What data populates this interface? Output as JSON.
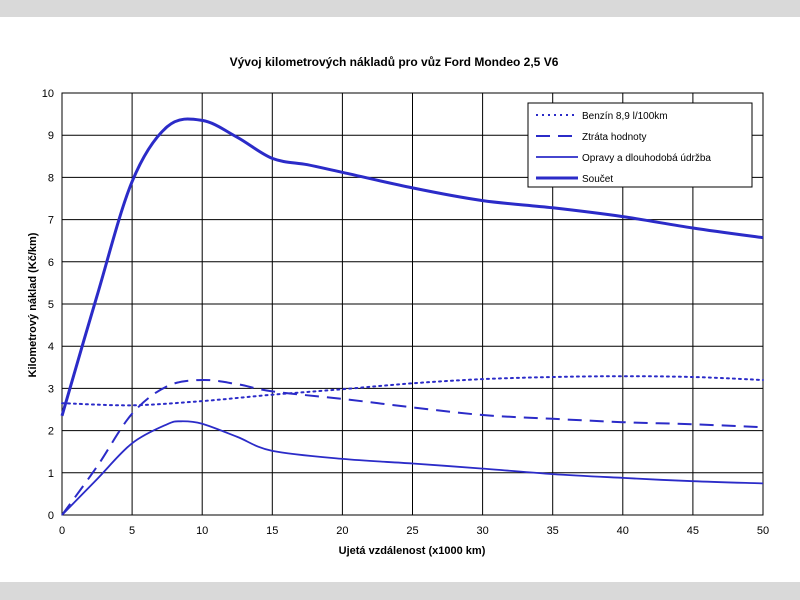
{
  "chart_data": {
    "type": "line",
    "title": "Vývoj kilometrových nákladů pro vůz Ford Mondeo 2,5 V6",
    "xlabel": "Ujetá vzdálenost (x1000 km)",
    "ylabel": "Kilometrový náklad (Kč/km)",
    "xlim": [
      0,
      50
    ],
    "ylim": [
      0,
      10
    ],
    "xticks": [
      0,
      5,
      10,
      15,
      20,
      25,
      30,
      35,
      40,
      45,
      50
    ],
    "yticks": [
      0,
      1,
      2,
      3,
      4,
      5,
      6,
      7,
      8,
      9,
      10
    ],
    "grid": true,
    "legend_position": "top-right",
    "color": "#2b2bc8",
    "series": [
      {
        "name": "Benzín 8,9 l/100km",
        "style": "dotted",
        "x": [
          0,
          5,
          10,
          15,
          20,
          25,
          30,
          35,
          40,
          45,
          50
        ],
        "y": [
          2.65,
          2.6,
          2.7,
          2.85,
          2.98,
          3.12,
          3.22,
          3.27,
          3.29,
          3.27,
          3.2
        ]
      },
      {
        "name": "Ztráta hodnoty",
        "style": "dashed",
        "x": [
          0,
          2.5,
          5,
          7.5,
          10,
          12.5,
          15,
          20,
          25,
          30,
          35,
          40,
          45,
          50
        ],
        "y": [
          0,
          1.15,
          2.4,
          3.05,
          3.2,
          3.1,
          2.93,
          2.75,
          2.55,
          2.37,
          2.28,
          2.2,
          2.15,
          2.08
        ]
      },
      {
        "name": "Opravy a dlouhodobá údržba",
        "style": "solid",
        "x": [
          0,
          2.5,
          5,
          7.5,
          8.5,
          10,
          12.5,
          15,
          20,
          25,
          30,
          35,
          40,
          45,
          50
        ],
        "y": [
          0,
          0.85,
          1.7,
          2.15,
          2.22,
          2.16,
          1.85,
          1.52,
          1.33,
          1.22,
          1.1,
          0.97,
          0.88,
          0.8,
          0.75
        ]
      },
      {
        "name": "Součet",
        "style": "solid-thick",
        "x": [
          0,
          2.5,
          5,
          7.5,
          10,
          12.5,
          15,
          17.5,
          20,
          25,
          30,
          35,
          40,
          45,
          50
        ],
        "y": [
          2.35,
          5.2,
          7.9,
          9.2,
          9.35,
          8.95,
          8.45,
          8.3,
          8.12,
          7.75,
          7.45,
          7.28,
          7.07,
          6.8,
          6.57
        ]
      }
    ]
  }
}
